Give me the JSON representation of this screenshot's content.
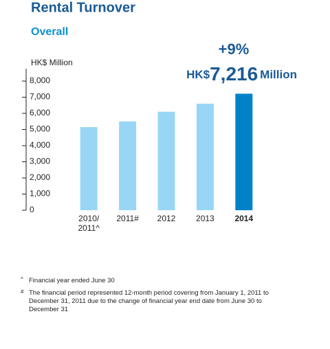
{
  "chart_data": {
    "type": "bar",
    "title": "Rental Turnover",
    "subtitle": "Overall",
    "y_label": "HK$ Million",
    "annotation": {
      "change": "+9%",
      "prefix": "HK$",
      "value": "7,216",
      "suffix": "Million"
    },
    "categories": [
      "2010/\n2011^",
      "2011#",
      "2012",
      "2013",
      "2014"
    ],
    "values": [
      5150,
      5500,
      6100,
      6600,
      7216
    ],
    "colors": [
      "#99d6f5",
      "#99d6f5",
      "#99d6f5",
      "#99d6f5",
      "#0082c8"
    ],
    "ylim": [
      0,
      8000
    ],
    "yticks": [
      0,
      {
        "value": 1000,
        "label": "1,000"
      },
      {
        "value": 2000,
        "label": "2,000"
      },
      {
        "value": 3000,
        "label": "3,000"
      },
      {
        "value": 4000,
        "label": "4,000"
      },
      {
        "value": 5000,
        "label": "5,000"
      },
      {
        "value": 6000,
        "label": "6,000"
      },
      {
        "value": 7000,
        "label": "7,000"
      },
      {
        "value": 8000,
        "label": "8,000"
      }
    ],
    "notes": [
      {
        "symbol": "^",
        "text": "Financial year ended June 30"
      },
      {
        "symbol": "#",
        "text": "The financial period represented 12-month period covering from January 1, 2011 to December 31, 2011 due to the change of financial year end date from June 30 to December 31"
      }
    ]
  }
}
